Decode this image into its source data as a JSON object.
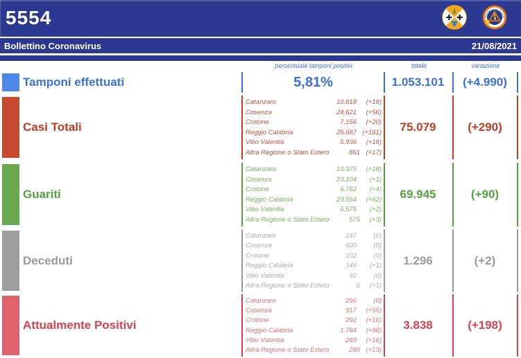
{
  "header": {
    "code": "5554"
  },
  "title_bar": {
    "title": "Bollettino Coronavirus",
    "date": "21/08/2021"
  },
  "columns": {
    "percent_header": "percentuale tamponi positivi",
    "total_header": "totale",
    "variation_header": "variazione"
  },
  "logos": {
    "calabria_name": "Regione Calabria",
    "protezione_text_top": "PROTEZIONE CIVILE",
    "protezione_text_bottom": "Regione Calabria"
  },
  "theme": {
    "header_blue": "#2b3990",
    "background": "#ffffff"
  },
  "rows": [
    {
      "id": "tamponi",
      "title": "Tamponi effettuati",
      "percent": "5,81%",
      "total": "1.053.101",
      "variation": "(+4.990)",
      "colors": {
        "swatch": "#4d88e8",
        "title": "#3b70d9",
        "list": "#3b70d9",
        "line": "#3b70d9"
      }
    },
    {
      "id": "casi",
      "title": "Casi Totali",
      "total": "75.079",
      "variation": "(+290)",
      "colors": {
        "swatch": "#c54a2e",
        "title": "#c43a25",
        "list": "#cb5140",
        "line": "#c43a25"
      },
      "details": [
        {
          "name": "Catanzaro",
          "value": "10.818",
          "delta": "(+18)"
        },
        {
          "name": "Cosenza",
          "value": "24.621",
          "delta": "(+56)"
        },
        {
          "name": "Crotone",
          "value": "7.156",
          "delta": "(+20)"
        },
        {
          "name": "Reggio Calabria",
          "value": "25.687",
          "delta": "(+161)"
        },
        {
          "name": "Vibo Valentia",
          "value": "5.936",
          "delta": "(+18)"
        },
        {
          "name": "Altra Regione o Stato Estero",
          "value": "861",
          "delta": "(+17)"
        }
      ]
    },
    {
      "id": "guariti",
      "title": "Guariti",
      "total": "69.945",
      "variation": "(+90)",
      "colors": {
        "swatch": "#69a84f",
        "title": "#53a23e",
        "list": "#77b15f",
        "line": "#53a23e"
      },
      "details": [
        {
          "name": "Catanzaro",
          "value": "10.375",
          "delta": "(+18)"
        },
        {
          "name": "Cosenza",
          "value": "23.104",
          "delta": "(+1)"
        },
        {
          "name": "Crotone",
          "value": "6.762",
          "delta": "(+4)"
        },
        {
          "name": "Reggio Calabria",
          "value": "23.554",
          "delta": "(+62)"
        },
        {
          "name": "Vibo Valentia",
          "value": "5.575",
          "delta": "(+2)"
        },
        {
          "name": "Altra Regione o Stato Estero",
          "value": "575",
          "delta": "(+3)"
        }
      ]
    },
    {
      "id": "deceduti",
      "title": "Deceduti",
      "total": "1.296",
      "variation": "(+2)",
      "colors": {
        "swatch": "#9e9e9e",
        "title": "#9b9b9b",
        "list": "#ababab",
        "line": "#9b9b9b"
      },
      "details": [
        {
          "name": "Catanzaro",
          "value": "147",
          "delta": "(0)"
        },
        {
          "name": "Cosenza",
          "value": "600",
          "delta": "(0)"
        },
        {
          "name": "Crotone",
          "value": "102",
          "delta": "(0)"
        },
        {
          "name": "Reggio Calabria",
          "value": "349",
          "delta": "(+1)"
        },
        {
          "name": "Vibo Valentia",
          "value": "92",
          "delta": "(0)"
        },
        {
          "name": "Altra Regione o Stato Estero",
          "value": "6",
          "delta": "(+1)"
        }
      ]
    },
    {
      "id": "positivi",
      "title": "Attualmente Positivi",
      "total": "3.838",
      "variation": "(+198)",
      "colors": {
        "swatch": "#e0616b",
        "title": "#d8414f",
        "list": "#e17173",
        "line": "#d8414f"
      },
      "details": [
        {
          "name": "Catanzaro",
          "value": "296",
          "delta": "(0)"
        },
        {
          "name": "Cosenza",
          "value": "917",
          "delta": "(+55)"
        },
        {
          "name": "Crotone",
          "value": "292",
          "delta": "(+16)"
        },
        {
          "name": "Reggio Calabria",
          "value": "1.784",
          "delta": "(+98)"
        },
        {
          "name": "Vibo Valentia",
          "value": "269",
          "delta": "(+16)"
        },
        {
          "name": "Altra Regione o Stato Estero",
          "value": "280",
          "delta": "(+13)"
        }
      ]
    }
  ]
}
